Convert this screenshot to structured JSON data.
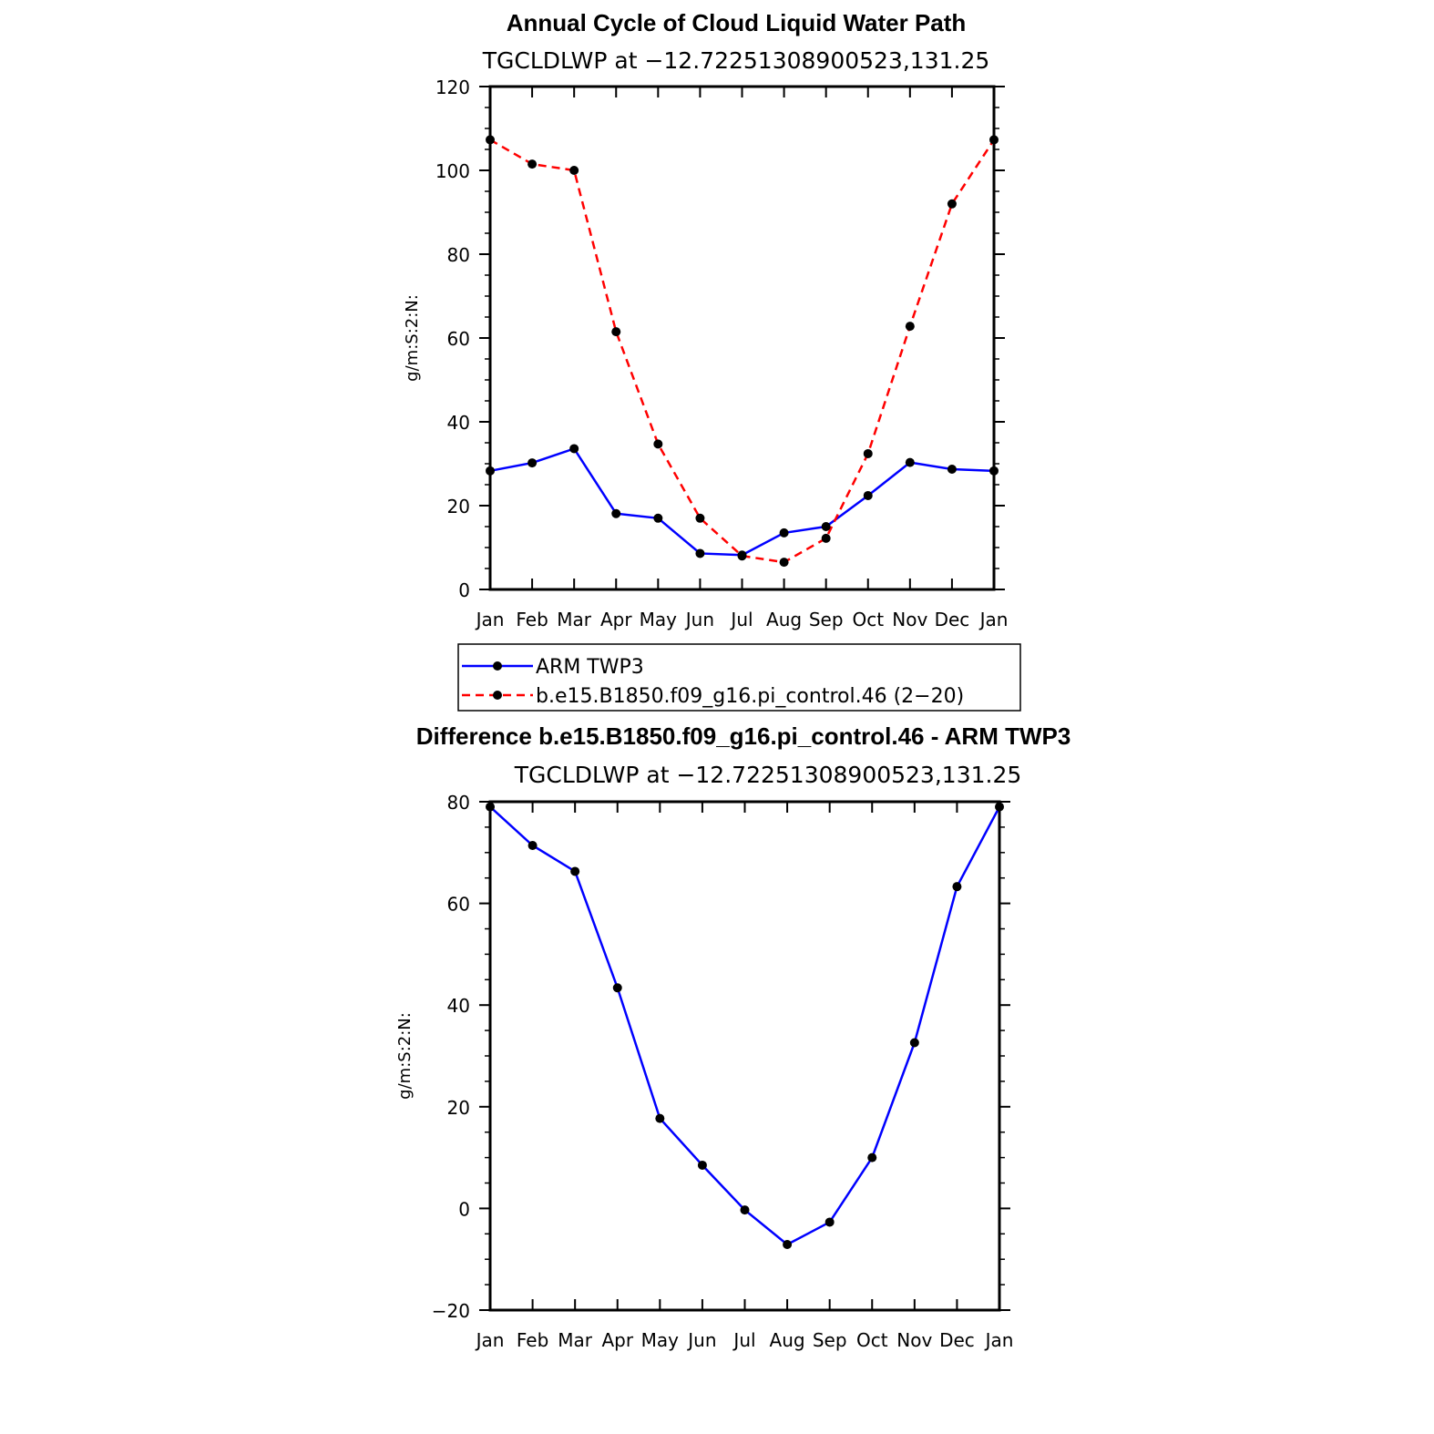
{
  "figure": {
    "title": "Annual Cycle of Cloud Liquid Water Path",
    "legend": {
      "entries": [
        {
          "label": "ARM TWP3",
          "color": "#0000ff",
          "dash": "solid"
        },
        {
          "label": "b.e15.B1850.f09_g16.pi_control.46 (2−20)",
          "color": "#ff0000",
          "dash": "dashed"
        }
      ]
    }
  },
  "chart_data": [
    {
      "type": "line",
      "title": "Annual Cycle of Cloud Liquid Water Path",
      "subtitle": "TGCLDLWP at −12.72251308900523,131.25",
      "xlabel": "",
      "ylabel": "g/m:S:2:N:",
      "categories": [
        "Jan",
        "Feb",
        "Mar",
        "Apr",
        "May",
        "Jun",
        "Jul",
        "Aug",
        "Sep",
        "Oct",
        "Nov",
        "Dec",
        "Jan"
      ],
      "ylim": [
        0,
        120
      ],
      "yticks": [
        0,
        20,
        40,
        60,
        80,
        100,
        120
      ],
      "grid": false,
      "series": [
        {
          "name": "ARM TWP3",
          "color": "#0000ff",
          "dash": "solid",
          "values": [
            28.3,
            30.2,
            33.6,
            18.1,
            17.0,
            8.6,
            8.2,
            13.5,
            15.0,
            22.4,
            30.3,
            28.7,
            28.3
          ]
        },
        {
          "name": "b.e15.B1850.f09_g16.pi_control.46 (2−20)",
          "color": "#ff0000",
          "dash": "dashed",
          "values": [
            107.3,
            101.5,
            100.0,
            61.5,
            34.7,
            17.0,
            8.0,
            6.5,
            12.2,
            32.4,
            62.8,
            92.0,
            107.3
          ]
        }
      ]
    },
    {
      "type": "line",
      "title": "Difference b.e15.B1850.f09_g16.pi_control.46 - ARM TWP3",
      "subtitle": "TGCLDLWP at −12.72251308900523,131.25",
      "xlabel": "",
      "ylabel": "g/m:S:2:N:",
      "categories": [
        "Jan",
        "Feb",
        "Mar",
        "Apr",
        "May",
        "Jun",
        "Jul",
        "Aug",
        "Sep",
        "Oct",
        "Nov",
        "Dec",
        "Jan"
      ],
      "ylim": [
        -20,
        80
      ],
      "yticks": [
        -20,
        0,
        20,
        40,
        60,
        80
      ],
      "grid": false,
      "series": [
        {
          "color": "#0000ff",
          "dash": "solid",
          "values": [
            79.0,
            71.4,
            66.3,
            43.4,
            17.7,
            8.5,
            -0.3,
            -7.1,
            -2.7,
            10.0,
            32.6,
            63.3,
            79.0
          ]
        }
      ]
    }
  ]
}
